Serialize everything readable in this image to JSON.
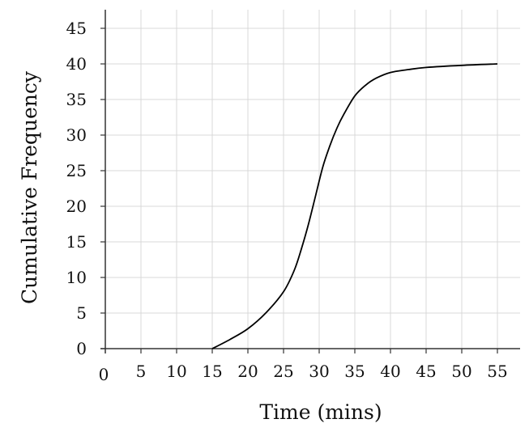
{
  "chart_data": {
    "type": "line",
    "title": "",
    "xlabel": "Time (mins)",
    "ylabel": "Cumulative Frequency",
    "xlim": [
      0,
      58
    ],
    "ylim": [
      0,
      47
    ],
    "grid": true,
    "x_ticks": [
      0,
      5,
      10,
      15,
      20,
      25,
      30,
      35,
      40,
      45,
      50,
      55
    ],
    "y_ticks": [
      0,
      5,
      10,
      15,
      20,
      25,
      30,
      35,
      40,
      45
    ],
    "series": [
      {
        "x": [
          15,
          17.5,
          20,
          22.5,
          25,
          26.5,
          27.5,
          28.5,
          29.5,
          30.5,
          31.5,
          32.5,
          33.5,
          35,
          36.5,
          38,
          40,
          42.5,
          45,
          50,
          55
        ],
        "y": [
          0,
          1.3,
          2.8,
          5,
          8,
          11,
          14,
          17.5,
          21.5,
          25.5,
          28.5,
          31,
          33,
          35.5,
          37,
          38,
          38.8,
          39.2,
          39.5,
          39.8,
          40
        ],
        "color": "#000000"
      }
    ]
  }
}
